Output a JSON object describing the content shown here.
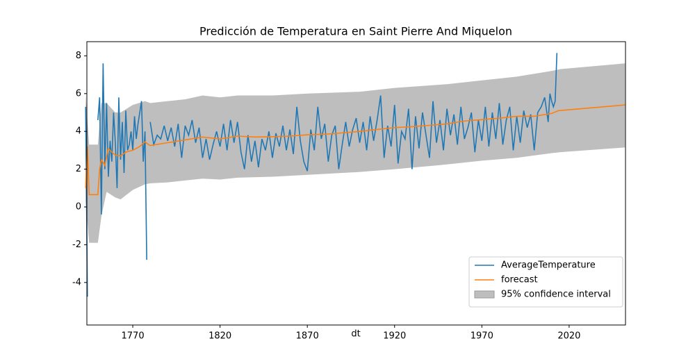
{
  "chart_data": {
    "type": "line",
    "title": "Predicción de Temperatura en Saint Pierre And Miquelon",
    "xlabel": "dt",
    "xlim": [
      1743.7,
      2052.3
    ],
    "xticks": [
      1770,
      1820,
      1870,
      1920,
      1970,
      2020
    ],
    "ylim": [
      -6.25,
      8.75
    ],
    "yticks": [
      -4,
      -2,
      0,
      2,
      4,
      6,
      8
    ],
    "legend": "lower right",
    "series": [
      {
        "name": "AverageTemperature",
        "color": "#1f77b4",
        "x": [
          1743,
          1744,
          1745,
          1750,
          1751,
          1752,
          1753,
          1754,
          1755,
          1756,
          1757,
          1758,
          1759,
          1760,
          1761,
          1762,
          1763,
          1764,
          1765,
          1766,
          1767,
          1768,
          1769,
          1770,
          1771,
          1772,
          1773,
          1774,
          1775,
          1776,
          1777,
          1778,
          1779,
          1780,
          1782,
          1784,
          1786,
          1788,
          1790,
          1792,
          1794,
          1796,
          1798,
          1800,
          1802,
          1804,
          1806,
          1808,
          1810,
          1812,
          1814,
          1816,
          1818,
          1820,
          1822,
          1824,
          1826,
          1828,
          1830,
          1832,
          1834,
          1836,
          1838,
          1840,
          1842,
          1844,
          1846,
          1848,
          1850,
          1852,
          1854,
          1856,
          1858,
          1860,
          1862,
          1864,
          1866,
          1868,
          1870,
          1872,
          1874,
          1876,
          1878,
          1880,
          1882,
          1884,
          1886,
          1888,
          1890,
          1892,
          1894,
          1896,
          1898,
          1900,
          1902,
          1904,
          1906,
          1908,
          1910,
          1912,
          1914,
          1916,
          1918,
          1920,
          1922,
          1924,
          1926,
          1928,
          1930,
          1932,
          1934,
          1936,
          1938,
          1940,
          1942,
          1944,
          1946,
          1948,
          1950,
          1952,
          1954,
          1956,
          1958,
          1960,
          1962,
          1964,
          1966,
          1968,
          1970,
          1972,
          1974,
          1976,
          1978,
          1980,
          1982,
          1984,
          1986,
          1988,
          1990,
          1992,
          1994,
          1996,
          1998,
          2000,
          2002,
          2004,
          2006,
          2008,
          2009,
          2010,
          2011,
          2012,
          2013
        ],
        "values": [
          5.3,
          -4.75,
          null,
          4.6,
          5.8,
          -0.4,
          7.6,
          2.0,
          5.5,
          1.6,
          3.5,
          2.4,
          5.0,
          3.4,
          1.0,
          5.8,
          2.5,
          4.5,
          1.8,
          5.1,
          3.0,
          3.3,
          4.0,
          3.0,
          4.8,
          3.6,
          4.4,
          5.0,
          5.6,
          2.4,
          4.0,
          -2.8,
          null,
          4.5,
          3.3,
          3.8,
          3.6,
          4.3,
          3.5,
          4.2,
          3.2,
          4.4,
          2.6,
          4.3,
          3.8,
          4.6,
          3.4,
          4.2,
          2.6,
          3.6,
          2.5,
          3.3,
          4.0,
          3.2,
          4.4,
          3.0,
          4.6,
          3.4,
          4.5,
          2.9,
          2.0,
          3.8,
          2.4,
          3.5,
          2.1,
          3.6,
          3.0,
          4.0,
          2.6,
          3.9,
          3.2,
          4.3,
          3.0,
          4.1,
          2.8,
          5.3,
          3.5,
          2.4,
          1.9,
          4.1,
          3.0,
          5.3,
          3.6,
          4.4,
          2.4,
          3.8,
          4.3,
          2.0,
          3.3,
          4.5,
          3.2,
          4.1,
          4.7,
          3.4,
          4.5,
          3.0,
          4.8,
          3.5,
          4.6,
          5.9,
          2.6,
          4.3,
          3.2,
          5.4,
          2.3,
          4.0,
          3.6,
          5.2,
          2.0,
          4.8,
          3.1,
          5.0,
          3.8,
          2.6,
          5.6,
          3.4,
          4.6,
          3.0,
          5.2,
          3.8,
          4.9,
          3.3,
          5.3,
          3.6,
          4.2,
          5.0,
          2.9,
          4.6,
          3.5,
          5.3,
          3.2,
          5.0,
          3.6,
          5.5,
          3.3,
          4.6,
          5.3,
          3.0,
          4.8,
          3.4,
          5.1,
          4.2,
          4.9,
          3.0,
          5.0,
          5.3,
          5.8,
          4.5,
          6.0,
          5.6,
          5.3,
          5.6,
          8.15
        ]
      },
      {
        "name": "forecast",
        "color": "#ff7f0e",
        "x": [
          1743,
          1744,
          1745,
          1750,
          1751,
          1752,
          1754,
          1756,
          1758,
          1760,
          1763,
          1766,
          1770,
          1774,
          1777,
          1779,
          1780,
          1790,
          1800,
          1810,
          1820,
          1830,
          1840,
          1850,
          1860,
          1870,
          1880,
          1890,
          1900,
          1910,
          1920,
          1930,
          1940,
          1950,
          1960,
          1970,
          1980,
          1990,
          2000,
          2010,
          2014,
          2052
        ],
        "values": [
          1.0,
          3.2,
          0.65,
          0.65,
          2.0,
          2.5,
          2.2,
          3.1,
          2.9,
          2.75,
          2.7,
          2.9,
          3.0,
          3.2,
          3.45,
          3.3,
          3.25,
          3.4,
          3.55,
          3.7,
          3.6,
          3.75,
          3.7,
          3.72,
          3.75,
          3.82,
          3.85,
          3.92,
          4.0,
          4.1,
          4.2,
          4.25,
          4.32,
          4.4,
          4.55,
          4.62,
          4.7,
          4.8,
          4.8,
          4.95,
          5.1,
          5.4
        ]
      }
    ],
    "band": {
      "name": "95% confidence interval",
      "color": "#bebebe",
      "x": [
        1743,
        1745,
        1750,
        1752,
        1755,
        1760,
        1763,
        1770,
        1777,
        1780,
        1790,
        1800,
        1810,
        1820,
        1830,
        1850,
        1870,
        1900,
        1920,
        1950,
        1970,
        1990,
        2010,
        2015,
        2052
      ],
      "upper": [
        5.9,
        3.3,
        3.3,
        5.5,
        5.5,
        5.0,
        5.0,
        5.4,
        5.6,
        5.5,
        5.6,
        5.7,
        5.9,
        5.8,
        5.9,
        5.9,
        6.0,
        6.1,
        6.3,
        6.5,
        6.7,
        6.9,
        7.2,
        7.3,
        7.6
      ],
      "lower": [
        0.3,
        -1.9,
        -1.9,
        -0.5,
        0.8,
        0.5,
        0.4,
        0.9,
        1.2,
        1.25,
        1.3,
        1.4,
        1.5,
        1.45,
        1.55,
        1.6,
        1.7,
        1.85,
        2.0,
        2.25,
        2.45,
        2.6,
        2.85,
        2.9,
        3.15
      ]
    }
  }
}
